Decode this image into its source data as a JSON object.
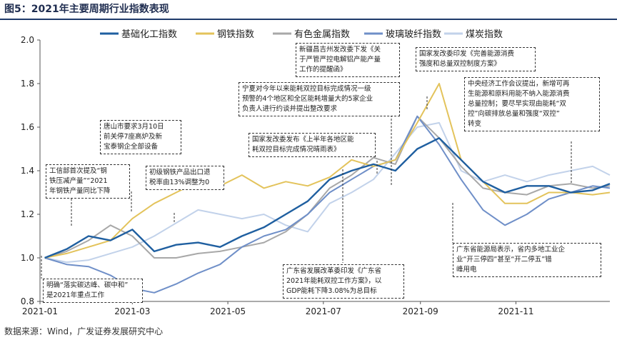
{
  "figure": {
    "title": "图5：2021年主要周期行业指数表现",
    "source": "数据来源：Wind，广发证券发展研究中心"
  },
  "chart_data": {
    "type": "line",
    "x": [
      "2021-01-04",
      "2021-01-18",
      "2021-02-01",
      "2021-02-15",
      "2021-03-01",
      "2021-03-15",
      "2021-03-29",
      "2021-04-12",
      "2021-04-26",
      "2021-05-10",
      "2021-05-24",
      "2021-06-07",
      "2021-06-21",
      "2021-07-05",
      "2021-07-19",
      "2021-08-02",
      "2021-08-16",
      "2021-08-30",
      "2021-09-13",
      "2021-09-27",
      "2021-10-11",
      "2021-10-25",
      "2021-11-08",
      "2021-11-22",
      "2021-12-06",
      "2021-12-20",
      "2021-12-31"
    ],
    "series": [
      {
        "name": "基础化工指数",
        "color": "#1f5fa0",
        "values": [
          1.0,
          1.04,
          1.1,
          1.08,
          1.13,
          1.03,
          1.06,
          1.07,
          1.05,
          1.1,
          1.14,
          1.2,
          1.26,
          1.36,
          1.4,
          1.43,
          1.4,
          1.5,
          1.55,
          1.45,
          1.35,
          1.3,
          1.33,
          1.33,
          1.3,
          1.31,
          1.34
        ]
      },
      {
        "name": "钢铁指数",
        "color": "#e3c35b",
        "values": [
          1.0,
          1.02,
          1.05,
          1.08,
          1.18,
          1.25,
          1.3,
          1.35,
          1.33,
          1.38,
          1.32,
          1.35,
          1.33,
          1.37,
          1.45,
          1.42,
          1.45,
          1.62,
          1.8,
          1.45,
          1.35,
          1.25,
          1.25,
          1.3,
          1.3,
          1.29,
          1.3
        ]
      },
      {
        "name": "有色金属指数",
        "color": "#a8a8a8",
        "values": [
          1.0,
          1.03,
          1.08,
          1.15,
          1.1,
          1.0,
          1.0,
          1.02,
          1.03,
          1.05,
          1.07,
          1.12,
          1.2,
          1.32,
          1.38,
          1.46,
          1.43,
          1.65,
          1.55,
          1.42,
          1.32,
          1.3,
          1.29,
          1.33,
          1.34,
          1.32,
          1.33
        ]
      },
      {
        "name": "玻璃玻纤指数",
        "color": "#6f8fc8",
        "values": [
          1.0,
          0.97,
          0.96,
          0.92,
          0.86,
          0.84,
          0.88,
          0.93,
          0.97,
          1.05,
          1.1,
          1.13,
          1.2,
          1.3,
          1.36,
          1.42,
          1.45,
          1.65,
          1.52,
          1.36,
          1.22,
          1.15,
          1.2,
          1.27,
          1.3,
          1.33,
          1.32
        ]
      },
      {
        "name": "煤炭指数",
        "color": "#c2d2ea",
        "values": [
          1.0,
          0.98,
          0.99,
          1.02,
          1.05,
          1.1,
          1.16,
          1.22,
          1.2,
          1.18,
          1.2,
          1.15,
          1.12,
          1.25,
          1.3,
          1.36,
          1.48,
          1.6,
          1.62,
          1.4,
          1.35,
          1.38,
          1.35,
          1.38,
          1.4,
          1.42,
          1.38
        ]
      }
    ],
    "x_ticks": [
      "2021-01",
      "2021-03",
      "2021-05",
      "2021-07",
      "2021-09",
      "2021-11"
    ],
    "y_ticks": [
      "0.8",
      "1.0",
      "1.2",
      "1.4",
      "1.6",
      "1.8",
      "2.0"
    ],
    "ylim": [
      0.8,
      2.0
    ],
    "grid": false,
    "legend": "top",
    "annotations": [
      "工信部首次提及“钢\n铁压减产量”“2021\n年钢铁产量同比下降",
      "唐山市要求3月10日\n前关停7座高炉及新\n宝泰钢企全部设备",
      "初级钢铁产品出口退\n税率由13%调整为0",
      "明确“落实碳达峰、碳中和”\n是2021年重点工作",
      "宁夏对今年以来能耗双控目标完成情况一级\n预警的4个地区和全区能耗增量大的5家企业\n负责人进行约谈并提出整改要求",
      "新疆昌吉州发改委下发《关\n于严管严控电解铝产能产量\n工作的提醒函》",
      "国家发改委发布《上半年各地区能\n耗双控目标完成情况晴雨表》",
      "国家发改委印发《完善能源消费\n强度和总量双控制度方案》",
      "中央经济工作会议提出，新增可再\n生能源和原料用能不纳入能源消费\n总量控制；要尽早实现由能耗“双\n控”向碳排放总量和强度“双控”\n转变",
      "广东省能源局表示，省内多地工业企\n业“开三停四”甚至“开二停五”错\n峰用电",
      "广东省发展改革委印发《广东省\n2021年能耗双控工作方案》，以\nGDP能耗下降3.08%为总目标"
    ]
  }
}
